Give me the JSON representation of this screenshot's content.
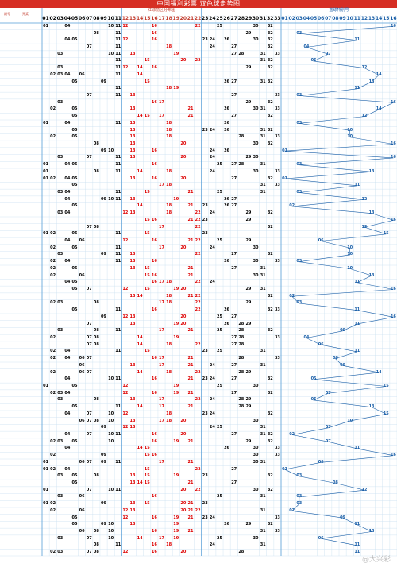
{
  "header": {
    "title": "中国福利彩票  双色球走势图",
    "red_zone_label": "红球前区分布图",
    "blue_zone_label": "蓝球特别号",
    "issue_label": "期号",
    "award_label": "开奖"
  },
  "watermark": "@大兴彩",
  "colors": {
    "title_bg": "#d62e24",
    "red_zone_line": "#d00000",
    "blue_line": "#1a5fa8",
    "grid": "#c8dff0"
  },
  "chart_data": {
    "type": "table",
    "red_columns": [
      "01",
      "02",
      "03",
      "04",
      "05",
      "06",
      "07",
      "08",
      "09",
      "10",
      "11",
      "12",
      "13",
      "14",
      "15",
      "16",
      "17",
      "18",
      "19",
      "20",
      "21",
      "22",
      "23",
      "24",
      "25",
      "26",
      "27",
      "28",
      "29",
      "30",
      "31",
      "32",
      "33"
    ],
    "blue_columns": [
      "01",
      "02",
      "03",
      "04",
      "05",
      "06",
      "07",
      "08",
      "09",
      "10",
      "11",
      "12",
      "13",
      "14",
      "15",
      "16"
    ],
    "rows": [
      {
        "red": [
          1,
          4,
          10,
          11,
          12,
          16,
          22,
          25,
          30,
          32
        ],
        "blue": 16
      },
      {
        "red": [
          8,
          11,
          16,
          29,
          32
        ],
        "blue": 3
      },
      {
        "red": [
          4,
          5,
          11,
          12,
          16,
          23,
          24,
          26,
          30,
          32
        ],
        "blue": 11
      },
      {
        "red": [
          7,
          11,
          18,
          24,
          27,
          32
        ],
        "blue": 4
      },
      {
        "red": [
          3,
          10,
          11,
          13,
          19,
          27,
          28,
          31,
          33
        ],
        "blue": 7
      },
      {
        "red": [
          11,
          15,
          20,
          22,
          31,
          32
        ],
        "blue": 5
      },
      {
        "red": [
          3,
          11,
          12,
          14,
          16,
          29,
          32
        ],
        "blue": 12
      },
      {
        "red": [
          2,
          3,
          4,
          6,
          11,
          14
        ],
        "blue": 14
      },
      {
        "red": [
          5,
          9,
          15,
          26,
          27,
          31,
          32
        ],
        "blue": 13
      },
      {
        "red": [
          11,
          18,
          19
        ],
        "blue": 11
      },
      {
        "red": [
          7,
          11,
          13,
          27,
          33
        ],
        "blue": 3
      },
      {
        "red": [
          3,
          16,
          17,
          29,
          32
        ],
        "blue": 16
      },
      {
        "red": [
          2,
          5,
          13,
          21,
          26,
          30,
          31,
          33
        ],
        "blue": 14
      },
      {
        "red": [
          5,
          14,
          15,
          17,
          21,
          27,
          32
        ],
        "blue": 12
      },
      {
        "red": [
          1,
          4,
          11,
          13,
          18,
          26
        ],
        "blue": 3
      },
      {
        "red": [
          5,
          13,
          18,
          23,
          24,
          26,
          31,
          32
        ],
        "blue": 10
      },
      {
        "red": [
          2,
          5,
          13,
          18,
          28,
          31,
          33
        ],
        "blue": 10
      },
      {
        "red": [
          8,
          13,
          20,
          30,
          32
        ],
        "blue": 16
      },
      {
        "red": [
          9,
          10,
          13,
          16,
          24,
          26
        ],
        "blue": 1
      },
      {
        "red": [
          3,
          7,
          11,
          13,
          20,
          24,
          29,
          30
        ],
        "blue": 16
      },
      {
        "red": [
          1,
          4,
          5,
          11,
          16,
          25,
          27,
          28,
          31
        ],
        "blue": 3
      },
      {
        "red": [
          1,
          8,
          11,
          14,
          18,
          24,
          30,
          33
        ],
        "blue": 13
      },
      {
        "red": [
          1,
          2,
          4,
          5,
          13,
          16,
          20,
          27,
          32
        ],
        "blue": 1
      },
      {
        "red": [
          5,
          17,
          18,
          31,
          33
        ],
        "blue": 11
      },
      {
        "red": [
          3,
          4,
          11,
          15,
          21,
          25,
          31
        ],
        "blue": 3
      },
      {
        "red": [
          4,
          9,
          10,
          11,
          13,
          19,
          26,
          27
        ],
        "blue": 12
      },
      {
        "red": [
          5,
          14,
          18,
          21,
          23,
          26,
          27
        ],
        "blue": 2
      },
      {
        "red": [
          3,
          4,
          12,
          13,
          18,
          22,
          24,
          29,
          32
        ],
        "blue": 13
      },
      {
        "red": [
          15,
          16,
          21,
          22,
          23,
          29
        ],
        "blue": 16
      },
      {
        "red": [
          7,
          8,
          17,
          22,
          32
        ],
        "blue": 12
      },
      {
        "red": [
          1,
          2,
          5,
          11,
          15,
          23
        ],
        "blue": 15
      },
      {
        "red": [
          4,
          6,
          12,
          16,
          21,
          22,
          25,
          29
        ],
        "blue": 6
      },
      {
        "red": [
          2,
          5,
          11,
          17,
          20,
          24,
          30
        ],
        "blue": 10
      },
      {
        "red": [
          3,
          9,
          11,
          13,
          22,
          27,
          32
        ],
        "blue": 10
      },
      {
        "red": [
          2,
          4,
          11,
          13,
          16,
          26,
          30,
          33
        ],
        "blue": 3
      },
      {
        "red": [
          2,
          5,
          13,
          15,
          21,
          27,
          31
        ],
        "blue": 10
      },
      {
        "red": [
          2,
          6,
          15,
          16,
          21,
          30,
          31
        ],
        "blue": 13
      },
      {
        "red": [
          4,
          5,
          16,
          17,
          18,
          22,
          24
        ],
        "blue": 11
      },
      {
        "red": [
          5,
          7,
          12,
          15,
          19,
          20,
          29,
          31
        ],
        "blue": 16
      },
      {
        "red": [
          13,
          14,
          18,
          21,
          22,
          32
        ],
        "blue": 2
      },
      {
        "red": [
          2,
          3,
          8,
          17,
          18,
          22,
          29
        ],
        "blue": 3
      },
      {
        "red": [
          5,
          11,
          16,
          22,
          26,
          32,
          33
        ],
        "blue": 11
      },
      {
        "red": [
          9,
          12,
          13,
          20,
          25,
          27
        ],
        "blue": 16
      },
      {
        "red": [
          7,
          13,
          19,
          20,
          26,
          28,
          29
        ],
        "blue": 11
      },
      {
        "red": [
          3,
          8,
          11,
          17,
          21,
          25,
          28,
          32
        ],
        "blue": 9
      },
      {
        "red": [
          2,
          7,
          8,
          14,
          19,
          27,
          28,
          33
        ],
        "blue": 4
      },
      {
        "red": [
          7,
          8,
          14,
          18,
          22,
          27,
          28
        ],
        "blue": 6
      },
      {
        "red": [
          2,
          4,
          11,
          15,
          23,
          25,
          31
        ],
        "blue": 11
      },
      {
        "red": [
          2,
          4,
          6,
          7,
          16,
          17,
          21,
          28,
          33
        ],
        "blue": 8
      },
      {
        "red": [
          6,
          13,
          17,
          21,
          24,
          27,
          31
        ],
        "blue": 9
      },
      {
        "red": [
          2,
          6,
          7,
          14,
          18,
          22,
          28,
          29
        ],
        "blue": 14
      },
      {
        "red": [
          4,
          10,
          11,
          16,
          21,
          23,
          24,
          27,
          32
        ],
        "blue": 5
      },
      {
        "red": [
          1,
          5,
          12,
          19,
          25,
          30
        ],
        "blue": 15
      },
      {
        "red": [
          2,
          3,
          4,
          12,
          16,
          19,
          21,
          27,
          32
        ],
        "blue": 7
      },
      {
        "red": [
          3,
          8,
          13,
          17,
          22,
          24,
          28,
          29
        ],
        "blue": 5
      },
      {
        "red": [
          5,
          11,
          14,
          17,
          21,
          28,
          29
        ],
        "blue": 13
      },
      {
        "red": [
          4,
          7,
          10,
          12,
          18,
          23,
          24,
          32
        ],
        "blue": 15
      },
      {
        "red": [
          6,
          7,
          8,
          10,
          13,
          17,
          18,
          20,
          30
        ],
        "blue": 10
      },
      {
        "red": [
          9,
          12,
          13,
          24,
          25,
          31
        ],
        "blue": 7
      },
      {
        "red": [
          4,
          7,
          10,
          11,
          16,
          20,
          27,
          31,
          32
        ],
        "blue": 2
      },
      {
        "red": [
          2,
          3,
          5,
          10,
          16,
          19,
          21,
          29,
          32
        ],
        "blue": 7
      },
      {
        "red": [
          4,
          14,
          15,
          26,
          30,
          33
        ],
        "blue": 11
      },
      {
        "red": [
          2,
          9,
          15,
          16,
          30,
          33
        ],
        "blue": 16
      },
      {
        "red": [
          1,
          6,
          7,
          9,
          11,
          17,
          21,
          30,
          31
        ],
        "blue": 6
      },
      {
        "red": [
          1,
          2,
          4,
          15,
          22,
          27
        ],
        "blue": 1
      },
      {
        "red": [
          3,
          5,
          8,
          13,
          15,
          19,
          23,
          32
        ],
        "blue": 3
      },
      {
        "red": [
          5,
          13,
          14,
          15,
          21,
          27
        ],
        "blue": 8
      },
      {
        "red": [
          1,
          7,
          10,
          11,
          20,
          22,
          30,
          32
        ],
        "blue": 12
      },
      {
        "red": [
          3,
          6,
          16,
          25,
          31
        ],
        "blue": 3
      },
      {
        "red": [
          1,
          2,
          9,
          13,
          15,
          20,
          21,
          23
        ],
        "blue": 3
      },
      {
        "red": [
          2,
          6,
          12,
          13,
          20,
          21,
          22,
          31
        ],
        "blue": 2
      },
      {
        "red": [
          5,
          12,
          16,
          19,
          21,
          23,
          24,
          33
        ],
        "blue": 9
      },
      {
        "red": [
          5,
          9,
          10,
          13,
          19,
          26,
          29,
          32
        ],
        "blue": 11
      },
      {
        "red": [
          6,
          8,
          10,
          16,
          19,
          21,
          31,
          33
        ],
        "blue": 13
      },
      {
        "red": [
          3,
          7,
          10,
          14,
          17,
          19,
          25,
          30
        ],
        "blue": 6
      },
      {
        "red": [
          8,
          11,
          16,
          18,
          24,
          31
        ],
        "blue": 11
      },
      {
        "red": [
          2,
          3,
          7,
          8,
          12,
          16,
          20,
          28
        ],
        "blue": 11
      }
    ]
  }
}
